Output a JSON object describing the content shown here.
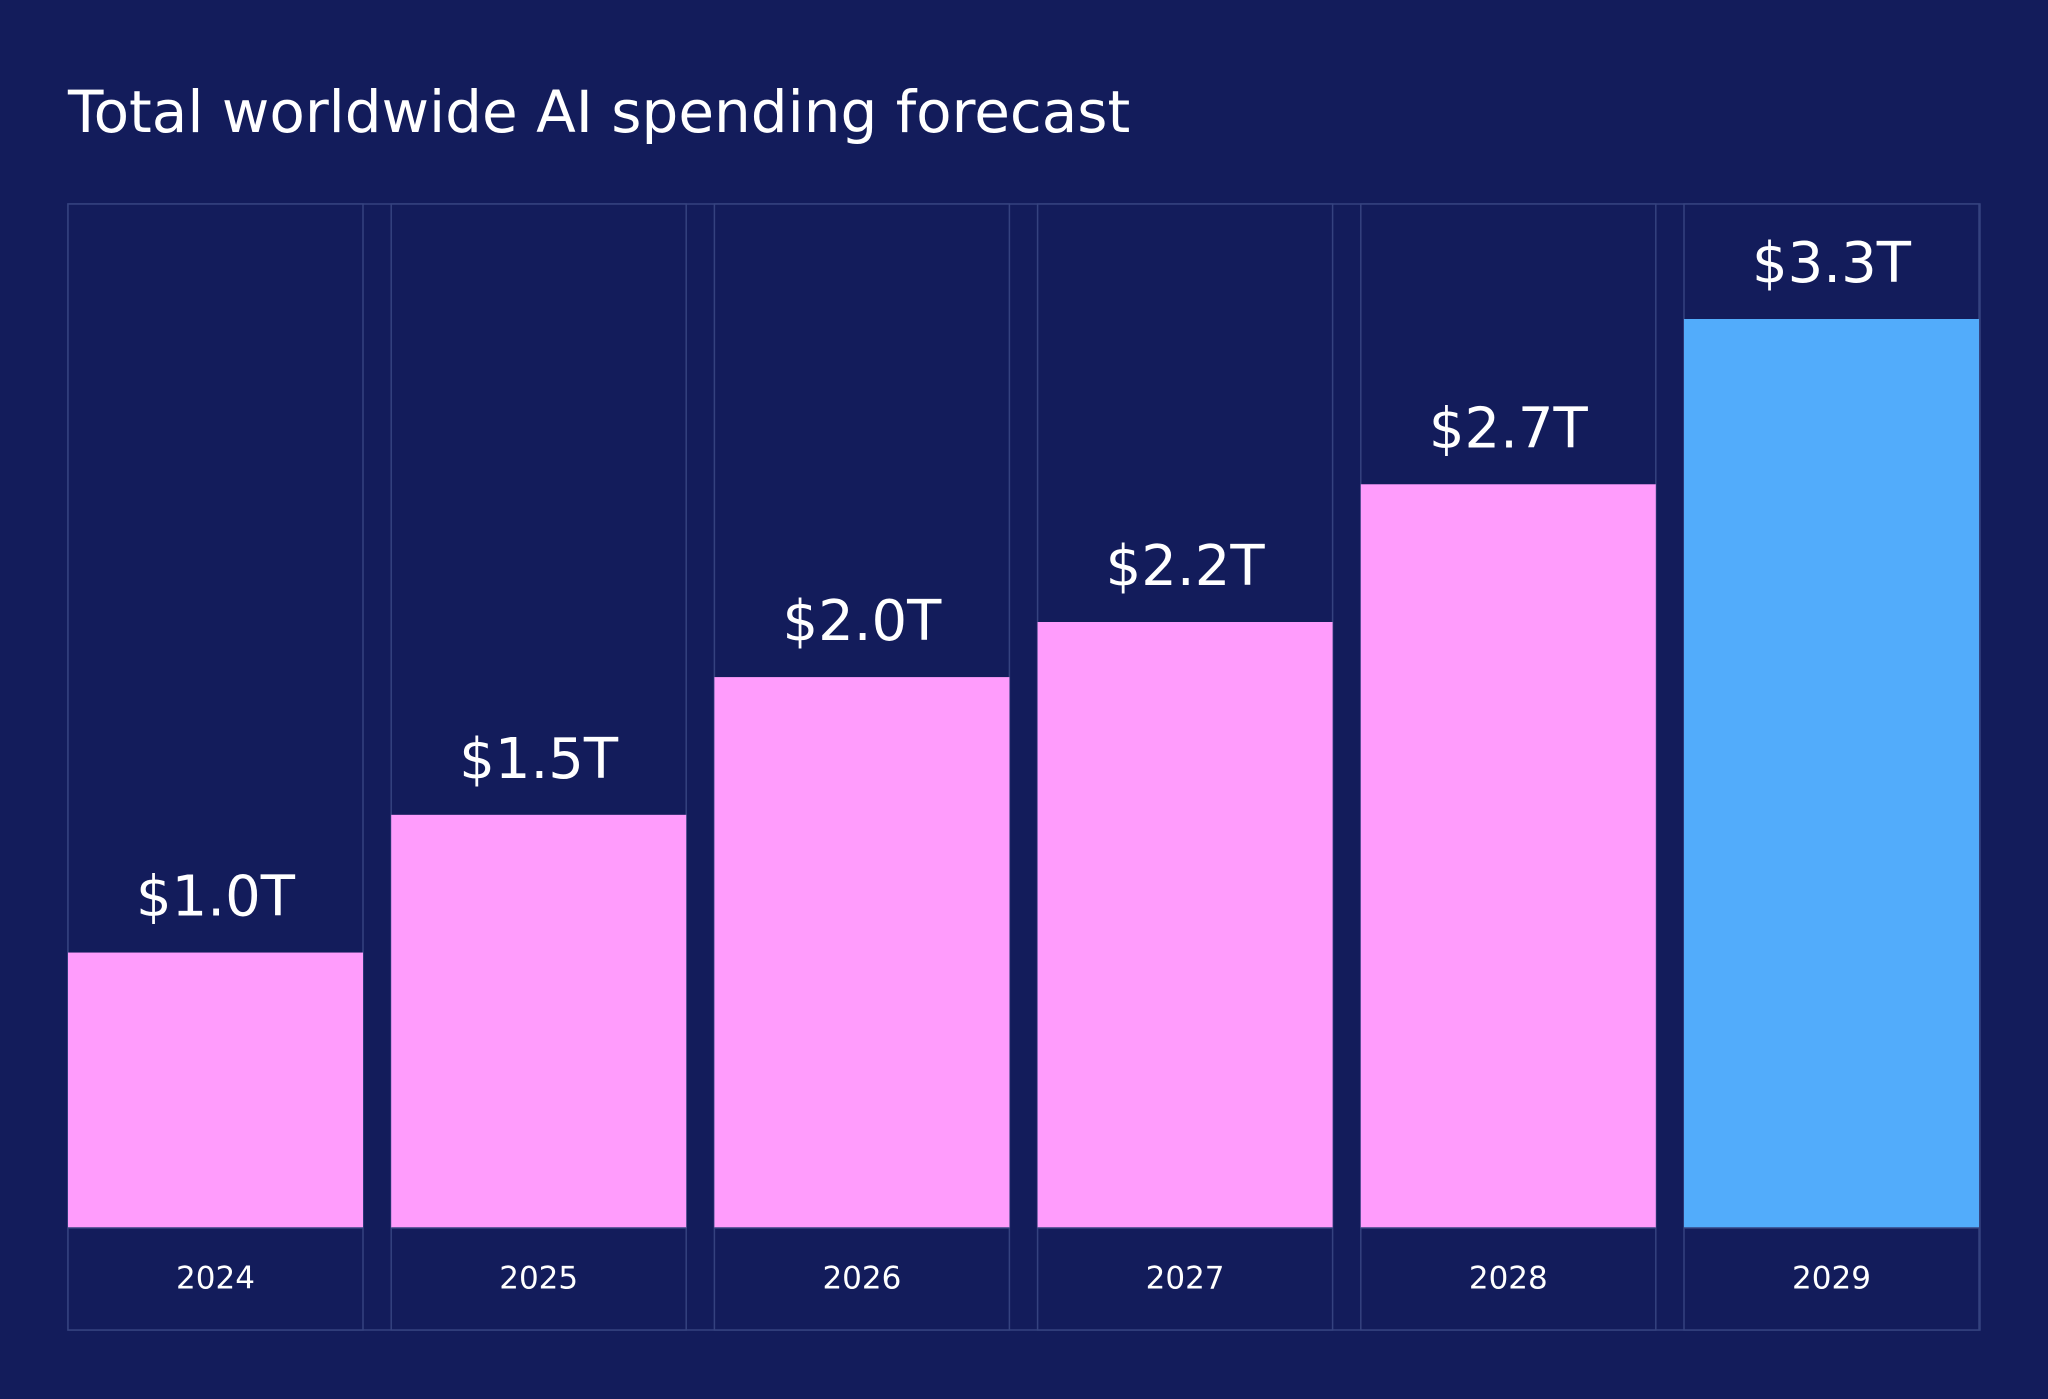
{
  "chart_data": {
    "type": "bar",
    "title": "Total worldwide AI spending forecast",
    "categories": [
      "2024",
      "2025",
      "2026",
      "2027",
      "2028",
      "2029"
    ],
    "values": [
      1.0,
      1.5,
      2.0,
      2.2,
      2.7,
      3.3
    ],
    "value_labels": [
      "$1.0T",
      "$1.5T",
      "$2.0T",
      "$2.2T",
      "$2.7T",
      "$3.3T"
    ],
    "colors": [
      "#ff9cfc",
      "#ff9cfc",
      "#ff9cfc",
      "#ff9cfc",
      "#ff9cfc",
      "#52acfb"
    ]
  }
}
